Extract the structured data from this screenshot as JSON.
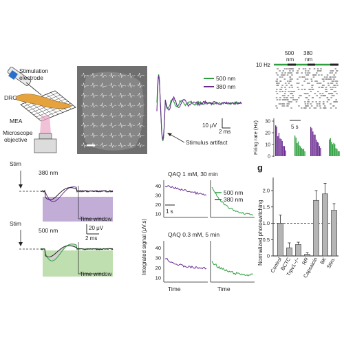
{
  "colors": {
    "green": "#2e9e3e",
    "purple": "#6a2c91",
    "purple_shade": "#b79fd0",
    "green_shade": "#b8dba8",
    "bar_gray": "#b5b5b5",
    "text": "#222222",
    "micro_bg": "#6f6f6f"
  },
  "schematic": {
    "label_stim": "Stimulation",
    "label_electrode": "electrode",
    "label_drg": "DRG",
    "label_mea": "MEA",
    "label_microscope": "Microscope",
    "label_objective": "objective"
  },
  "raw_traces": {
    "legend_500": "500 nm",
    "legend_380": "380 nm",
    "scale_v": "10 μV",
    "scale_t": "2 ms",
    "annotation": "Stimulus artifact"
  },
  "raster": {
    "label_500": "500",
    "label_500b": "nm",
    "label_380": "380",
    "label_380b": "nm",
    "freq_label": "10 Hz",
    "scale_t": "5 s",
    "ylabel": "Firing rate (Hz)",
    "yticks": [
      "0",
      "10",
      "20",
      "30"
    ]
  },
  "photoswitch_traces": {
    "stim_top": "Stim",
    "stim_bottom": "Stim",
    "wl_top": "380 nm",
    "wl_bottom": "500 nm",
    "scale_v": "20 μV",
    "scale_t": "2 ms",
    "window_top": "Time window",
    "window_bottom": "Time window"
  },
  "integrated": {
    "title_top": "QAQ 1 mM, 30 min",
    "title_bottom": "QAQ 0.3 mM, 5 min",
    "ylabel": "Integrated signal (μV.s)",
    "yticks": [
      "10",
      "20",
      "30",
      "40"
    ],
    "xlabel_left": "Time",
    "xlabel_right": "Time",
    "scale_t": "1 s",
    "legend_500": "500 nm",
    "legend_380": "380 nm"
  },
  "panel_letter": "g",
  "chart_data": {
    "type": "bar",
    "ylabel": "Normalized photoswitching",
    "categories": [
      "Control",
      "BCTC",
      "Trpv1−/−",
      "RR",
      "Capsaicin",
      "BK",
      "Stim."
    ],
    "values": [
      1.0,
      0.25,
      0.35,
      0.05,
      1.7,
      1.9,
      1.4
    ],
    "errors": [
      0.25,
      0.15,
      0.07,
      0.05,
      0.3,
      0.32,
      0.2
    ],
    "yticks": [
      "0",
      "0.5",
      "1.0",
      "1.5",
      "2.0"
    ],
    "ylim": [
      0,
      2.4
    ],
    "reference_line": 1.0
  }
}
